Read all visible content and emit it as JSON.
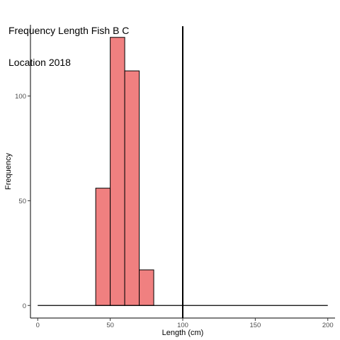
{
  "chart_data": {
    "type": "bar",
    "title_lines": [
      "Frequency Length Fish B C",
      "Location 2018"
    ],
    "xlabel": "Length (cm)",
    "ylabel": "Frequency",
    "xlim": [
      -5,
      205
    ],
    "ylim": [
      -6,
      134
    ],
    "x_ticks": [
      0,
      50,
      100,
      150,
      200
    ],
    "y_ticks": [
      0,
      50,
      100
    ],
    "bins": [
      {
        "x0": 40,
        "x1": 50,
        "value": 56
      },
      {
        "x0": 50,
        "x1": 60,
        "value": 128
      },
      {
        "x0": 60,
        "x1": 70,
        "value": 112
      },
      {
        "x0": 70,
        "x1": 80,
        "value": 17
      }
    ],
    "baseline": {
      "x0": 0,
      "x1": 200,
      "y": 0
    },
    "vline_x": 100,
    "bar_color": "#f08080",
    "bar_edge_color": "#000000",
    "grid": false
  }
}
